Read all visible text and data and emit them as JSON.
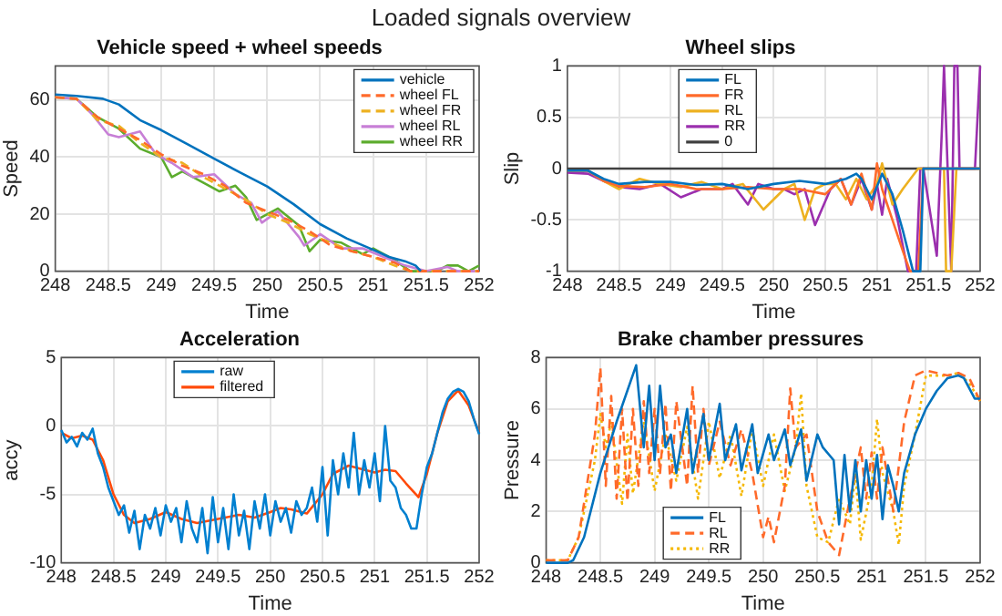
{
  "chart_data": [
    {
      "type": "line",
      "title": "Vehicle speed + wheel speeds",
      "xlabel": "Time",
      "ylabel": "Speed",
      "annotations": [
        "Loaded signals overview"
      ],
      "xlim": [
        248,
        252
      ],
      "xticks": [
        248,
        248.5,
        249,
        249.5,
        250,
        250.5,
        251,
        251.5,
        252
      ],
      "ylim": [
        0,
        72
      ],
      "yticks": [
        0,
        20,
        40,
        60
      ],
      "grid": true,
      "legend": "top right",
      "series": [
        {
          "name": "vehicle",
          "color": "#0072bd",
          "line_style": "solid",
          "x": [
            248,
            248.2,
            248.45,
            248.6,
            248.8,
            249,
            249.25,
            249.5,
            249.75,
            250,
            250.25,
            250.5,
            250.75,
            251,
            251.15,
            251.3,
            251.4,
            251.45
          ],
          "values": [
            62,
            61.5,
            60.5,
            58.5,
            53,
            49.5,
            44.5,
            39.5,
            34.5,
            29.7,
            23.5,
            16.5,
            11.5,
            7.5,
            5,
            3.5,
            2,
            0
          ]
        },
        {
          "name": "wheel FL",
          "color": "#ff6a2a",
          "line_style": "dashed",
          "x": [
            248,
            248.2,
            248.4,
            248.6,
            248.8,
            249,
            249.2,
            249.4,
            249.6,
            249.8,
            250,
            250.2,
            250.4,
            250.6,
            250.8,
            251,
            251.2,
            251.35,
            251.5,
            252
          ],
          "values": [
            61,
            60.5,
            54,
            50,
            46,
            41,
            37,
            34,
            30,
            24,
            21,
            18,
            14,
            9,
            7,
            5,
            3,
            0,
            0,
            0
          ]
        },
        {
          "name": "wheel FR",
          "color": "#edb120",
          "line_style": "dashed",
          "x": [
            248,
            248.2,
            248.4,
            248.6,
            248.8,
            249,
            249.2,
            249.4,
            249.6,
            249.8,
            250,
            250.2,
            250.4,
            250.6,
            250.8,
            251,
            251.2,
            251.35,
            251.5,
            252
          ],
          "values": [
            61,
            60.5,
            53,
            51,
            45,
            40,
            38,
            33,
            29,
            25,
            20,
            17,
            13,
            10,
            7,
            5,
            2,
            0,
            0,
            0
          ]
        },
        {
          "name": "wheel RL",
          "color": "#c77fd6",
          "line_style": "solid",
          "x": [
            248,
            248.2,
            248.35,
            248.5,
            248.6,
            248.8,
            248.95,
            249.1,
            249.3,
            249.5,
            249.7,
            249.85,
            249.95,
            250.1,
            250.3,
            250.35,
            250.5,
            250.7,
            250.9,
            251.1,
            251.3,
            251.5,
            251.7,
            251.8,
            252
          ],
          "values": [
            61,
            60.5,
            55,
            48,
            47,
            49,
            41,
            38,
            33,
            34,
            27,
            24,
            17,
            21,
            12,
            9,
            13,
            8,
            8,
            5,
            2,
            0,
            1.5,
            0,
            0
          ]
        },
        {
          "name": "wheel RR",
          "color": "#5cac2d",
          "line_style": "solid",
          "x": [
            248,
            248.2,
            248.4,
            248.6,
            248.8,
            249,
            249.1,
            249.2,
            249.4,
            249.55,
            249.7,
            249.8,
            249.9,
            250.1,
            250.3,
            250.4,
            250.5,
            250.7,
            250.9,
            251,
            251.2,
            251.35,
            251.6,
            251.7,
            251.8,
            251.9,
            252
          ],
          "values": [
            61,
            60.5,
            54,
            50,
            43,
            40,
            33,
            35,
            31,
            28,
            30,
            26,
            18,
            22,
            16,
            7,
            11,
            10,
            6,
            8,
            4,
            0,
            0,
            2,
            2,
            0,
            2
          ]
        }
      ]
    },
    {
      "type": "line",
      "title": "Wheel slips",
      "xlabel": "Time",
      "ylabel": "Slip",
      "xlim": [
        248,
        252
      ],
      "xticks": [
        248,
        248.5,
        249,
        249.5,
        250,
        250.5,
        251,
        251.5,
        252
      ],
      "ylim": [
        -1,
        1
      ],
      "yticks": [
        -1,
        -0.5,
        0,
        0.5,
        1
      ],
      "grid": true,
      "legend": "top",
      "series": [
        {
          "name": "FL",
          "color": "#0072bd",
          "x": [
            248,
            248.2,
            248.35,
            248.5,
            248.75,
            249,
            249.25,
            249.5,
            249.75,
            250,
            250.25,
            250.5,
            250.7,
            250.8,
            250.85,
            250.95,
            251.05,
            251.15,
            251.25,
            251.35,
            251.42,
            251.45,
            252
          ],
          "values": [
            -0.02,
            -0.02,
            -0.1,
            -0.15,
            -0.13,
            -0.13,
            -0.16,
            -0.15,
            -0.2,
            -0.15,
            -0.12,
            -0.15,
            -0.1,
            -0.05,
            -0.1,
            -0.3,
            -0.05,
            -0.25,
            -0.6,
            -1,
            -1,
            0,
            0
          ]
        },
        {
          "name": "FR",
          "color": "#ff6a2a",
          "x": [
            248,
            248.2,
            248.35,
            248.5,
            248.75,
            249,
            249.25,
            249.5,
            249.75,
            250,
            250.25,
            250.5,
            250.65,
            250.75,
            250.85,
            250.95,
            251,
            251.05,
            251.15,
            251.25,
            251.32,
            251.4,
            251.45,
            252
          ],
          "values": [
            -0.02,
            -0.02,
            -0.12,
            -0.17,
            -0.18,
            -0.15,
            -0.2,
            -0.2,
            -0.18,
            -0.2,
            -0.2,
            -0.25,
            -0.1,
            -0.35,
            -0.05,
            -0.4,
            0.05,
            -0.2,
            -0.5,
            -0.8,
            -1,
            -1,
            0,
            0
          ]
        },
        {
          "name": "RL",
          "color": "#edb120",
          "x": [
            248,
            248.2,
            248.35,
            248.5,
            248.7,
            248.9,
            249.1,
            249.3,
            249.5,
            249.7,
            249.9,
            250.1,
            250.2,
            250.3,
            250.4,
            250.5,
            250.6,
            250.7,
            250.8,
            250.9,
            251,
            251.05,
            251.15,
            251.25,
            251.4,
            251.65,
            251.67,
            251.72,
            251.75,
            251.77,
            252
          ],
          "values": [
            -0.02,
            -0.02,
            -0.12,
            -0.2,
            -0.1,
            -0.15,
            -0.18,
            -0.13,
            -0.2,
            -0.15,
            -0.4,
            -0.2,
            -0.15,
            -0.5,
            -0.2,
            -0.15,
            -0.15,
            -0.3,
            -0.1,
            -0.3,
            -0.15,
            0.05,
            -0.35,
            -0.2,
            0,
            0,
            -1,
            -1,
            -0.4,
            0,
            0
          ]
        },
        {
          "name": "RR",
          "color": "#9b2fae",
          "x": [
            248,
            248.2,
            248.35,
            248.5,
            248.7,
            248.9,
            249.1,
            249.3,
            249.5,
            249.6,
            249.75,
            249.85,
            250,
            250.1,
            250.2,
            250.3,
            250.4,
            250.55,
            250.65,
            250.75,
            250.85,
            250.95,
            251,
            251.05,
            251.1,
            251.2,
            251.3,
            251.38,
            251.42,
            251.45,
            251.58,
            251.63,
            251.65,
            251.72,
            251.75,
            251.78,
            251.8,
            251.95,
            252
          ],
          "values": [
            -0.04,
            -0.05,
            -0.12,
            -0.18,
            -0.2,
            -0.15,
            -0.28,
            -0.2,
            -0.2,
            -0.15,
            -0.35,
            -0.15,
            -0.2,
            -0.2,
            -0.25,
            -0.2,
            -0.55,
            -0.2,
            -0.1,
            -0.35,
            -0.1,
            -0.4,
            -0.15,
            -0.45,
            -0.1,
            -0.5,
            -1,
            -1,
            0,
            0,
            -0.85,
            0.4,
            1,
            -1,
            1,
            1,
            0,
            0,
            1
          ]
        },
        {
          "name": "0",
          "color": "#404040",
          "x": [
            248,
            252
          ],
          "values": [
            0,
            0
          ]
        }
      ]
    },
    {
      "type": "line",
      "title": "Acceleration",
      "xlabel": "Time",
      "ylabel": "accy",
      "xlim": [
        248,
        252
      ],
      "xticks": [
        248,
        248.5,
        249,
        249.5,
        250,
        250.5,
        251,
        251.5,
        252
      ],
      "ylim": [
        -10,
        5
      ],
      "yticks": [
        -10,
        -5,
        0,
        5
      ],
      "grid": true,
      "legend": "top",
      "series": [
        {
          "name": "raw",
          "color": "#0080d0",
          "x": [
            248,
            248.05,
            248.1,
            248.15,
            248.2,
            248.25,
            248.3,
            248.35,
            248.4,
            248.45,
            248.5,
            248.55,
            248.6,
            248.65,
            248.7,
            248.75,
            248.8,
            248.85,
            248.9,
            248.95,
            249,
            249.05,
            249.1,
            249.15,
            249.2,
            249.25,
            249.3,
            249.35,
            249.4,
            249.45,
            249.5,
            249.55,
            249.6,
            249.65,
            249.7,
            249.75,
            249.8,
            249.85,
            249.9,
            249.95,
            250,
            250.05,
            250.1,
            250.15,
            250.2,
            250.25,
            250.3,
            250.35,
            250.4,
            250.45,
            250.5,
            250.55,
            250.6,
            250.65,
            250.7,
            250.75,
            250.8,
            250.85,
            250.9,
            250.95,
            251,
            251.05,
            251.1,
            251.15,
            251.2,
            251.25,
            251.3,
            251.35,
            251.4,
            251.45,
            251.5,
            251.55,
            251.6,
            251.65,
            251.7,
            251.75,
            251.8,
            251.85,
            251.9,
            251.95,
            252
          ],
          "values": [
            -0.3,
            -1.2,
            -0.8,
            -1.5,
            -0.5,
            -1,
            -0.2,
            -2,
            -3,
            -4.5,
            -5.5,
            -6.5,
            -5.8,
            -7.8,
            -6.2,
            -9,
            -6.5,
            -7.5,
            -6,
            -8,
            -5.8,
            -7,
            -6,
            -8.5,
            -5.5,
            -7.5,
            -8.5,
            -6,
            -9.3,
            -5.2,
            -8.5,
            -6,
            -9,
            -5,
            -8,
            -6.2,
            -9,
            -5.5,
            -7.5,
            -5,
            -8,
            -5.5,
            -7,
            -6,
            -7.8,
            -5.5,
            -6.5,
            -6,
            -4.5,
            -7,
            -3,
            -8,
            -2.5,
            -5,
            -2,
            -4.5,
            -0.5,
            -5,
            -2.5,
            -4.5,
            -2,
            -5.5,
            0,
            -4,
            -4.5,
            -6,
            -6.5,
            -7.5,
            -7.5,
            -5,
            -3,
            -2,
            -0.5,
            1,
            2,
            2.5,
            2.7,
            2.5,
            1.8,
            0.5,
            -0.6
          ]
        },
        {
          "name": "filtered",
          "color": "#ff4a0a",
          "x": [
            248,
            248.1,
            248.2,
            248.3,
            248.4,
            248.5,
            248.6,
            248.7,
            248.85,
            249,
            249.15,
            249.3,
            249.5,
            249.7,
            249.85,
            250,
            250.1,
            250.2,
            250.35,
            250.5,
            250.6,
            250.75,
            250.9,
            251,
            251.1,
            251.2,
            251.3,
            251.42,
            251.5,
            251.6,
            251.7,
            251.8,
            251.9,
            252
          ],
          "values": [
            -0.5,
            -0.9,
            -0.7,
            -1,
            -2.5,
            -5,
            -6.5,
            -7.1,
            -6.8,
            -6.3,
            -6.8,
            -7.1,
            -6.8,
            -6.5,
            -6.7,
            -6.3,
            -6,
            -6.1,
            -6.4,
            -5,
            -3.5,
            -2.9,
            -3.2,
            -3.4,
            -3.2,
            -3.3,
            -4.2,
            -5.2,
            -3.5,
            -0.5,
            1.8,
            2.6,
            1.5,
            -0.5
          ]
        }
      ]
    },
    {
      "type": "line",
      "title": "Brake chamber pressures",
      "xlabel": "Time",
      "ylabel": "Pressure",
      "xlim": [
        248,
        252
      ],
      "xticks": [
        248,
        248.5,
        249,
        249.5,
        250,
        250.5,
        251,
        251.5,
        252
      ],
      "ylim": [
        0,
        8
      ],
      "yticks": [
        0,
        2,
        4,
        6,
        8
      ],
      "grid": true,
      "legend": "bottom",
      "series": [
        {
          "name": "FL",
          "color": "#0072bd",
          "line_style": "solid",
          "x": [
            248,
            248.2,
            248.25,
            248.35,
            248.5,
            248.65,
            248.83,
            248.9,
            248.95,
            249,
            249.05,
            249.1,
            249.15,
            249.2,
            249.3,
            249.35,
            249.45,
            249.5,
            249.6,
            249.65,
            249.75,
            249.8,
            249.9,
            249.95,
            250.05,
            250.1,
            250.2,
            250.25,
            250.35,
            250.4,
            250.5,
            250.55,
            250.65,
            250.7,
            250.75,
            250.8,
            250.85,
            250.9,
            250.95,
            251,
            251.05,
            251.1,
            251.15,
            251.2,
            251.25,
            251.3,
            251.4,
            251.5,
            251.6,
            251.7,
            251.8,
            251.85,
            251.9,
            251.95,
            252
          ],
          "values": [
            0,
            0,
            0.1,
            1,
            3.5,
            5.5,
            7.7,
            4.5,
            6.9,
            4,
            6.9,
            4.5,
            5,
            3.5,
            6,
            3.5,
            5.8,
            4,
            6.2,
            4,
            5.4,
            3.6,
            5.4,
            3.5,
            5,
            4,
            5.2,
            3.8,
            5.2,
            3.2,
            5,
            4.5,
            4,
            1.5,
            4.2,
            2,
            4,
            2,
            4,
            2.5,
            4.2,
            1.7,
            3.8,
            3,
            2,
            3.5,
            5,
            6,
            6.7,
            7.2,
            7.3,
            7.2,
            6.8,
            6.4,
            6.4
          ]
        },
        {
          "name": "RL",
          "color": "#ff6a2a",
          "line_style": "dashed",
          "x": [
            248,
            248.2,
            248.3,
            248.45,
            248.5,
            248.55,
            248.6,
            248.65,
            248.7,
            248.75,
            248.8,
            248.85,
            248.9,
            248.95,
            249,
            249.05,
            249.1,
            249.15,
            249.2,
            249.3,
            249.35,
            249.4,
            249.45,
            249.5,
            249.6,
            249.7,
            249.8,
            249.9,
            250,
            250.05,
            250.1,
            250.2,
            250.25,
            250.3,
            250.4,
            250.5,
            250.6,
            250.7,
            250.8,
            250.9,
            250.95,
            251,
            251.05,
            251.1,
            251.2,
            251.3,
            251.4,
            251.5,
            251.6,
            251.7,
            251.8,
            251.9,
            252
          ],
          "values": [
            0.1,
            0.1,
            1,
            5,
            7.6,
            3,
            6.5,
            2.5,
            6,
            2.4,
            6,
            3,
            6.3,
            3.5,
            6,
            3.5,
            6.2,
            2.8,
            6.3,
            3,
            6.9,
            3.5,
            6,
            3.8,
            5.5,
            3.8,
            5.2,
            3.5,
            1,
            1.8,
            0.8,
            3,
            6.8,
            4.5,
            5,
            2,
            0.8,
            0.3,
            2.5,
            4.5,
            2.5,
            4.3,
            2.5,
            4.5,
            2,
            5.5,
            7.3,
            7.5,
            7.4,
            7.3,
            7.4,
            7.2,
            6.3
          ]
        },
        {
          "name": "RR",
          "color": "#f5b800",
          "line_style": "dotted",
          "x": [
            248,
            248.2,
            248.3,
            248.45,
            248.5,
            248.55,
            248.6,
            248.7,
            248.75,
            248.8,
            248.9,
            249,
            249.1,
            249.2,
            249.3,
            249.4,
            249.5,
            249.6,
            249.7,
            249.8,
            249.9,
            250,
            250.1,
            250.2,
            250.3,
            250.35,
            250.4,
            250.5,
            250.6,
            250.7,
            250.8,
            250.85,
            250.9,
            251,
            251.05,
            251.1,
            251.2,
            251.25,
            251.3,
            251.4,
            251.5,
            251.6,
            251.7,
            251.8,
            251.9,
            252
          ],
          "values": [
            0.1,
            0.1,
            1,
            4,
            5.8,
            4.5,
            5.5,
            2.3,
            5,
            2.7,
            5.5,
            2.8,
            5,
            3.2,
            5.3,
            2.5,
            5.5,
            3.3,
            5,
            2.6,
            5.2,
            3,
            5,
            2.8,
            4.5,
            6.6,
            3,
            1,
            0.8,
            2.5,
            1.5,
            3.5,
            0.9,
            3,
            5.6,
            3.5,
            2,
            0.7,
            3,
            5,
            7.3,
            7.3,
            7.3,
            7.4,
            7,
            6.3
          ]
        }
      ]
    }
  ]
}
